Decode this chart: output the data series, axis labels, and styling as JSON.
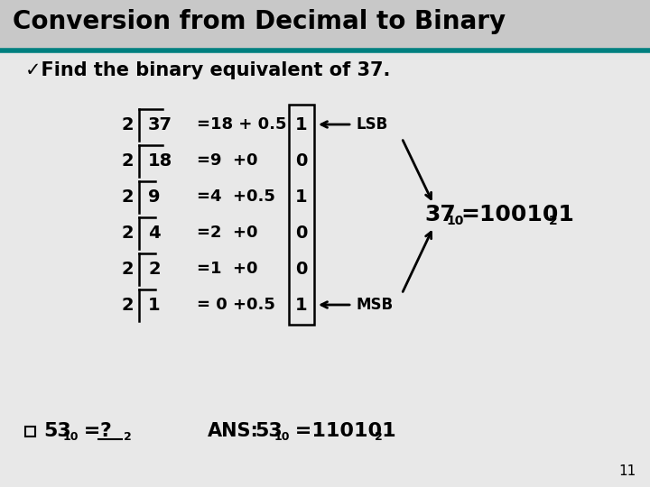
{
  "title": "Conversion from Decimal to Binary",
  "title_color": "#000000",
  "title_fontsize": 20,
  "header_line_color": "#008080",
  "bg_color": "#e8e8e8",
  "title_bg_color": "#c8c8c8",
  "bullet_text": "✓Find the binary equivalent of 37.",
  "division_rows": [
    {
      "divisor": "2",
      "dividend": "37",
      "result": "=18 + 0.5",
      "remainder": "1"
    },
    {
      "divisor": "2",
      "dividend": "18",
      "result": "=9  +0",
      "remainder": "0"
    },
    {
      "divisor": "2",
      "dividend": "9",
      "result": "=4  +0.5",
      "remainder": "1"
    },
    {
      "divisor": "2",
      "dividend": "4",
      "result": "=2  +0",
      "remainder": "0"
    },
    {
      "divisor": "2",
      "dividend": "2",
      "result": "=1  +0",
      "remainder": "0"
    },
    {
      "divisor": "2",
      "dividend": "1",
      "result": "= 0 +0.5",
      "remainder": "1"
    }
  ],
  "lsb_label": "LSB",
  "msb_label": "MSB",
  "page_num": "11"
}
